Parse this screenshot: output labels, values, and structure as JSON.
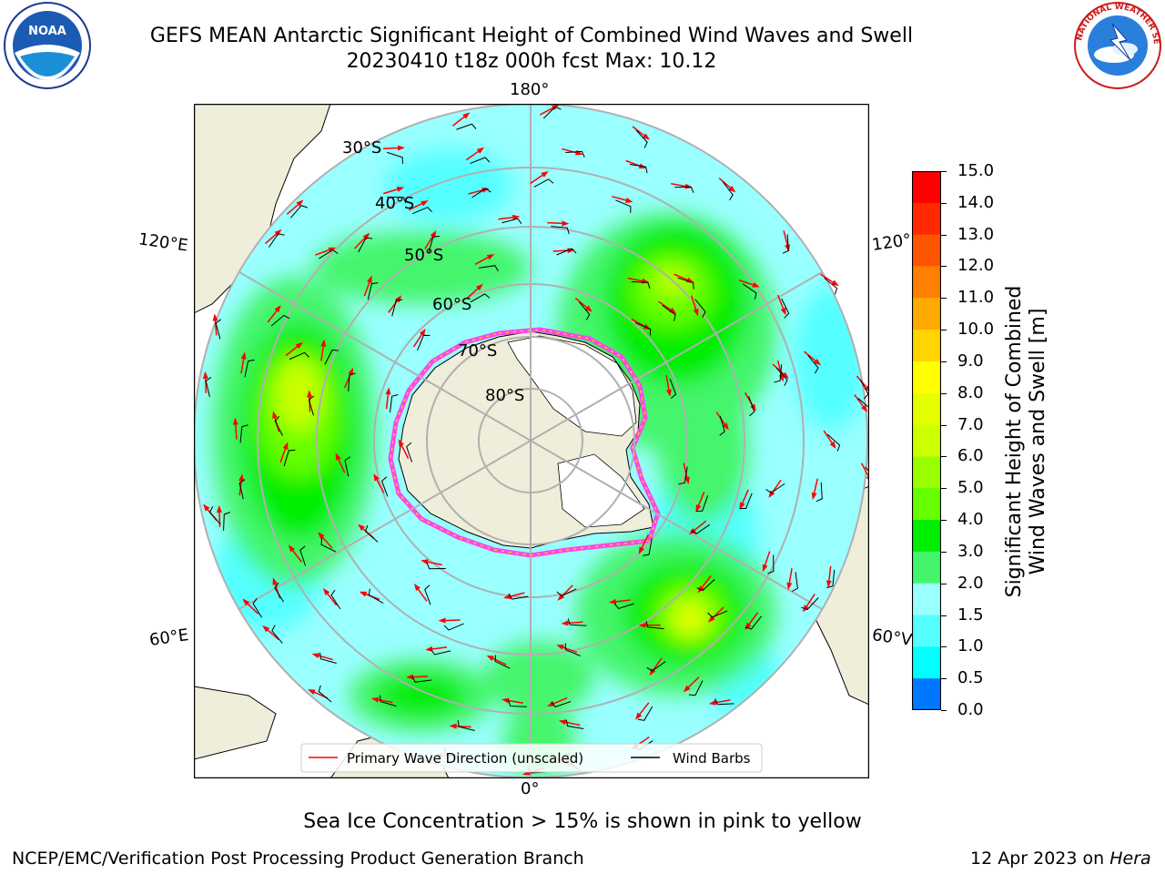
{
  "header": {
    "title_line1": "GEFS MEAN Antarctic Significant Height of Combined Wind Waves and Swell",
    "title_line2": "20230410 t18z 000h fcst   Max: 10.12"
  },
  "logos": {
    "left": "NOAA",
    "right": "NATIONAL WEATHER SERVICE"
  },
  "map": {
    "lon_labels": {
      "top": "180°",
      "bottom": "0°",
      "left_upper": "120°E",
      "left_lower": "60°E",
      "right_upper": "120°",
      "right_lower": "60°V"
    },
    "lat_labels": [
      "30°S",
      "40°S",
      "50°S",
      "60°S",
      "70°S",
      "80°S"
    ],
    "colors": {
      "land": "#efeedb",
      "ice_shelf": "#ffffff",
      "ocean_low": "#99ffff",
      "sea_ice_edge": "#ff44ee",
      "grid": "#b0b0b0",
      "arrow": "#ff0000",
      "barb": "#000000"
    }
  },
  "legend": {
    "wave_label": "Primary Wave Direction (unscaled)",
    "wind_label": "Wind Barbs"
  },
  "colorbar": {
    "title_line1": "Significant Height of Combined",
    "title_line2": "Wind Waves and Swell [m]",
    "ticks": [
      "15.0",
      "14.0",
      "13.0",
      "12.0",
      "11.0",
      "10.0",
      "9.0",
      "8.0",
      "7.0",
      "6.0",
      "5.0",
      "4.0",
      "3.0",
      "2.0",
      "1.5",
      "1.0",
      "0.5",
      "0.0"
    ],
    "colors_top_to_bottom": [
      "#ff0000",
      "#ff2a00",
      "#ff5500",
      "#ff7f00",
      "#ffaa00",
      "#ffd400",
      "#ffff00",
      "#e6ff00",
      "#ccff00",
      "#99ff00",
      "#66ff00",
      "#00ee00",
      "#44f56c",
      "#99ffff",
      "#55ffff",
      "#00ffff",
      "#0077ff",
      "#0000ff"
    ]
  },
  "note": "Sea Ice Concentration > 15% is shown in pink to yellow",
  "footer": {
    "left": "NCEP/EMC/Verification Post Processing Product Generation Branch",
    "right_date": "12 Apr 2023 on ",
    "right_host": "Hera"
  }
}
